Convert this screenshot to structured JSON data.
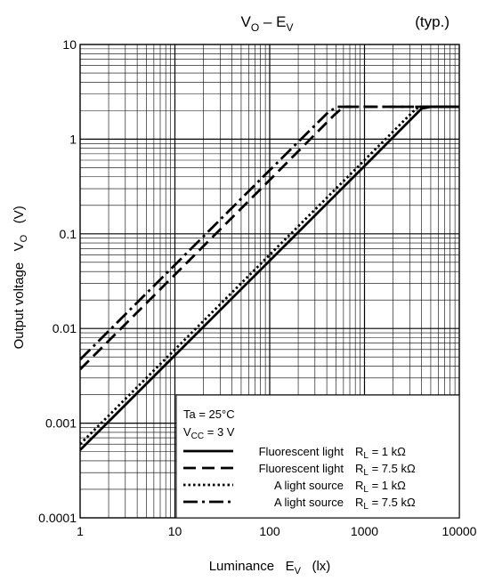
{
  "chart_data": {
    "type": "line",
    "title": "V",
    "title_sub_1": "O",
    "title_dash": " – E",
    "title_sub_2": "V",
    "note": "(typ.)",
    "xlabel": "Luminance   E",
    "xlabel_sub": "V",
    "xlabel_unit": "   (lx)",
    "ylabel": "Output voltage   V",
    "ylabel_sub": "O",
    "ylabel_unit": "   (V)",
    "x_scale": "log",
    "y_scale": "log",
    "xlim": [
      1,
      10000
    ],
    "ylim": [
      0.0001,
      10
    ],
    "x_ticks": [
      1,
      10,
      100,
      1000,
      10000
    ],
    "x_tick_labels": [
      "1",
      "10",
      "100",
      "1000",
      "10000"
    ],
    "y_ticks": [
      0.0001,
      0.001,
      0.01,
      0.1,
      1,
      10
    ],
    "y_tick_labels": [
      "0.0001",
      "0.001",
      "0.01",
      "0.1",
      "1",
      "10"
    ],
    "grid": true,
    "legend_position": "bottom-right",
    "conditions": [
      {
        "text": "Ta = 25°C",
        "sub": "",
        "tail": ""
      },
      {
        "text": "V",
        "sub": "CC",
        "tail": " = 3 V"
      }
    ],
    "series": [
      {
        "name": "Fluorescent light",
        "load": "R",
        "load_sub": "L",
        "load_value": " = 1 kΩ",
        "style": "solid",
        "x": [
          1,
          10,
          100,
          1000,
          4000,
          5000,
          10000
        ],
        "y": [
          0.00052,
          0.0052,
          0.052,
          0.52,
          2.1,
          2.2,
          2.2
        ]
      },
      {
        "name": "Fluorescent light",
        "load": "R",
        "load_sub": "L",
        "load_value": " = 7.5 kΩ",
        "style": "dashed",
        "x": [
          1,
          10,
          100,
          480,
          600,
          10000
        ],
        "y": [
          0.0037,
          0.037,
          0.37,
          1.8,
          2.2,
          2.2
        ]
      },
      {
        "name": "A light source",
        "load": "R",
        "load_sub": "L",
        "load_value": " = 1 kΩ",
        "style": "dotted",
        "x": [
          1,
          10,
          100,
          1000,
          3500,
          4500,
          10000
        ],
        "y": [
          0.0006,
          0.006,
          0.06,
          0.6,
          2.1,
          2.2,
          2.2
        ]
      },
      {
        "name": "A light source",
        "load": "R",
        "load_sub": "L",
        "load_value": " = 7.5 kΩ",
        "style": "dashdot",
        "x": [
          1,
          10,
          100,
          420,
          520,
          10000
        ],
        "y": [
          0.0047,
          0.047,
          0.47,
          1.95,
          2.2,
          2.2
        ]
      }
    ]
  }
}
